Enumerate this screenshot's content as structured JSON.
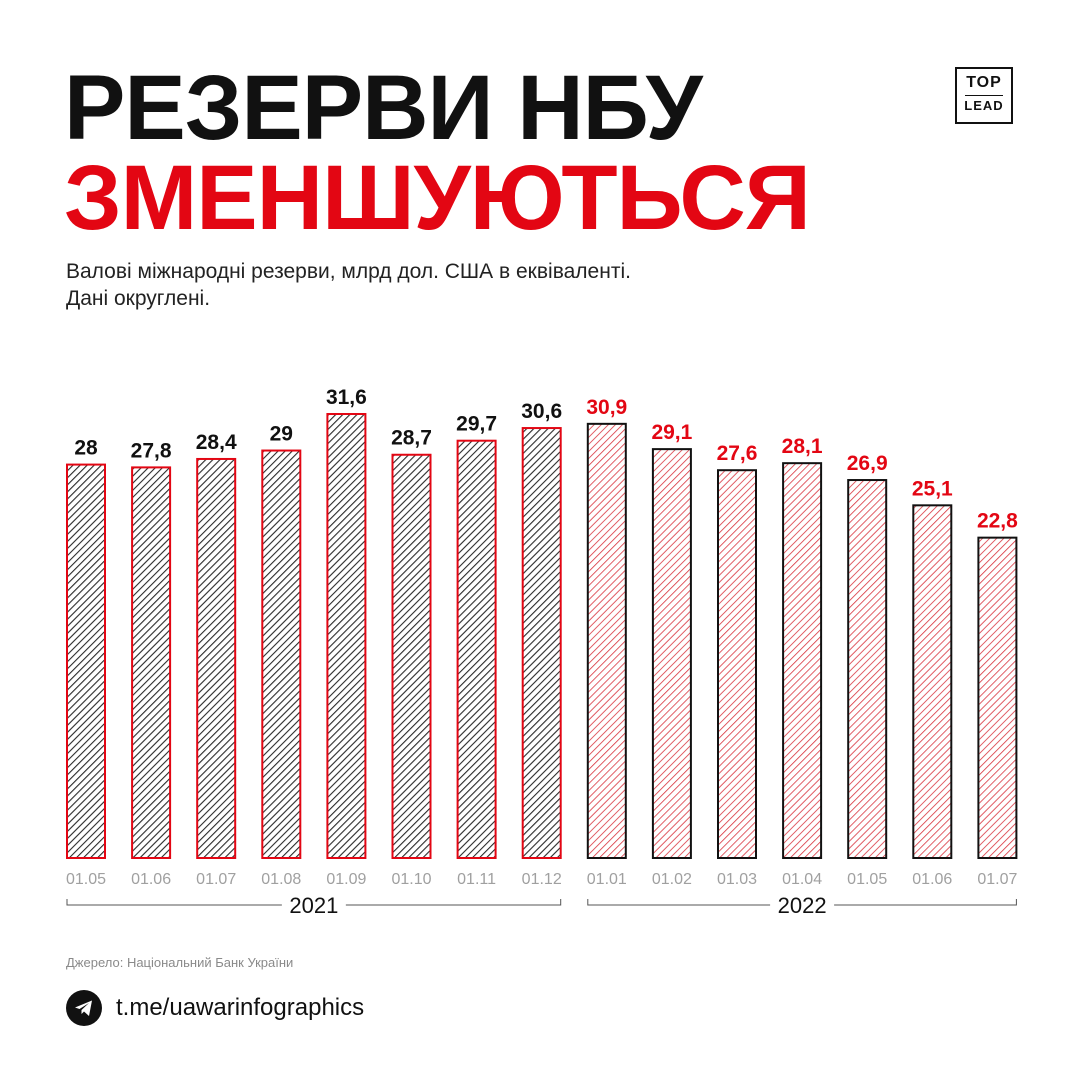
{
  "title": {
    "line1": "РЕЗЕРВИ НБУ",
    "line2": "ЗМЕНШУЮТЬСЯ"
  },
  "logo": {
    "top": "TOP",
    "bottom": "LEAD"
  },
  "subtitle": {
    "line1": "Валові міжнародні резерви, млрд дол. США в еквіваленті.",
    "line2": "Дані округлені."
  },
  "colors": {
    "red": "#e30613",
    "black": "#111111",
    "gray": "#a0a0a0"
  },
  "chart_data": {
    "type": "bar",
    "categories": [
      "01.05",
      "01.06",
      "01.07",
      "01.08",
      "01.09",
      "01.10",
      "01.11",
      "01.12",
      "01.01",
      "01.02",
      "01.03",
      "01.04",
      "01.05",
      "01.06",
      "01.07"
    ],
    "values": [
      28,
      27.8,
      28.4,
      29,
      31.6,
      28.7,
      29.7,
      30.6,
      30.9,
      29.1,
      27.6,
      28.1,
      26.9,
      25.1,
      22.8
    ],
    "value_labels": [
      "28",
      "27,8",
      "28,4",
      "29",
      "31,6",
      "28,7",
      "29,7",
      "30,6",
      "30,9",
      "29,1",
      "27,6",
      "28,1",
      "26,9",
      "25,1",
      "22,8"
    ],
    "groups": [
      {
        "label": "2021",
        "start": 0,
        "end": 7
      },
      {
        "label": "2022",
        "start": 8,
        "end": 14
      }
    ],
    "ylim": [
      0,
      31.6
    ],
    "grid": false,
    "legend": "none"
  },
  "source": "Джерело: Національний Банк України",
  "telegram": {
    "icon": "telegram-icon",
    "text": "t.me/uawarinfographics"
  }
}
